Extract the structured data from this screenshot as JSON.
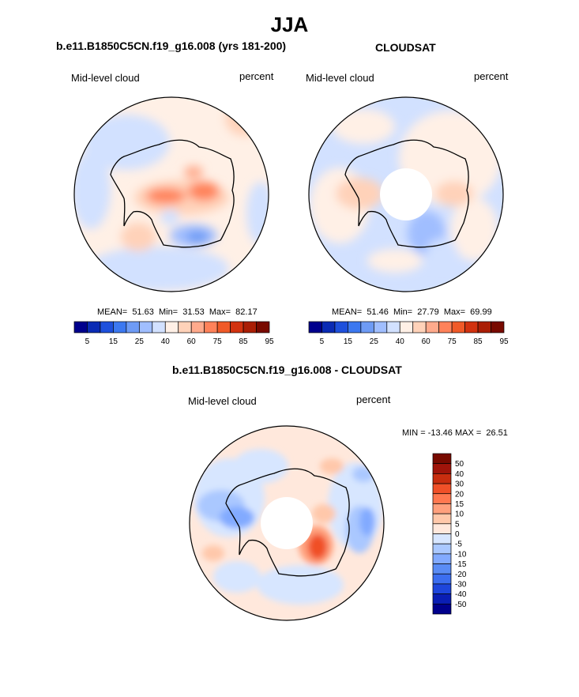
{
  "page": {
    "title": "JJA"
  },
  "panels": [
    {
      "title": "b.e11.B1850C5CN.f19_g16.008 (yrs 181-200)",
      "left_label": "Mid-level cloud",
      "right_label": "percent",
      "stats": "MEAN=  51.63  Min=  31.53  Max=  82.17",
      "colorbar": {
        "colors": [
          "#00008c",
          "#0a2bb4",
          "#1e50dc",
          "#3c78f0",
          "#6e9bf5",
          "#a0beff",
          "#d2e1ff",
          "#fff0e6",
          "#ffd2b9",
          "#ffaa8c",
          "#ff825a",
          "#f05a28",
          "#d2320f",
          "#aa1e05",
          "#780a00"
        ],
        "labels": [
          "5",
          "15",
          "25",
          "40",
          "60",
          "75",
          "85",
          "95"
        ]
      }
    },
    {
      "title": "CLOUDSAT",
      "left_label": "Mid-level cloud",
      "right_label": "percent",
      "stats": "MEAN=  51.46  Min=  27.79  Max=  69.99",
      "colorbar": {
        "colors": [
          "#00008c",
          "#0a2bb4",
          "#1e50dc",
          "#3c78f0",
          "#6e9bf5",
          "#a0beff",
          "#d2e1ff",
          "#fff0e6",
          "#ffd2b9",
          "#ffaa8c",
          "#ff825a",
          "#f05a28",
          "#d2320f",
          "#aa1e05",
          "#780a00"
        ],
        "labels": [
          "5",
          "15",
          "25",
          "40",
          "60",
          "75",
          "85",
          "95"
        ]
      }
    },
    {
      "title": "b.e11.B1850C5CN.f19_g16.008 - CLOUDSAT",
      "left_label": "Mid-level cloud",
      "right_label": "percent",
      "stats": "MIN = -13.46 MAX =  26.51",
      "colorbar": {
        "colors": [
          "#00008c",
          "#0a1eb4",
          "#1e46dc",
          "#3c6ef0",
          "#5a8cf5",
          "#82aaff",
          "#aac8ff",
          "#d7e6ff",
          "#ffe8dc",
          "#ffc8aa",
          "#ffa07d",
          "#ff7850",
          "#f05028",
          "#c82d0f",
          "#a0140a",
          "#780a00"
        ],
        "labels": [
          "50",
          "40",
          "30",
          "20",
          "15",
          "10",
          "5",
          "0",
          "-5",
          "-10",
          "-15",
          "-20",
          "-30",
          "-40",
          "-50"
        ]
      }
    }
  ]
}
